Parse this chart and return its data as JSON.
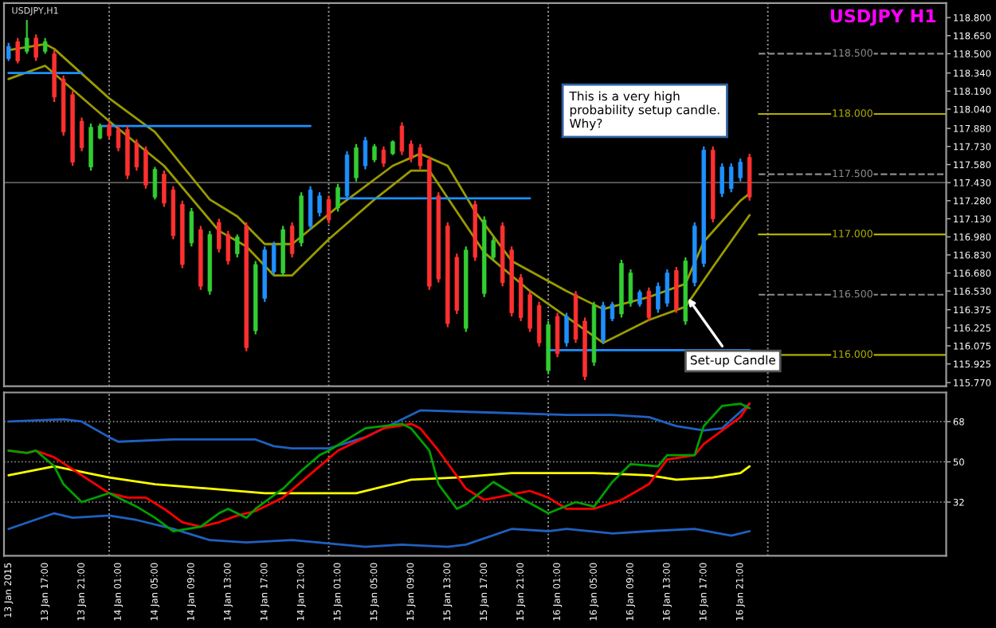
{
  "chart_data": [
    {
      "type": "candlestick",
      "title": "USDJPY H1",
      "annotations": [
        "USDJPY,H1",
        "This is a very high\nprobability setup candle.\nWhy?",
        {
          "text": "Set-up Candle",
          "x": "2015-01-16T15:00",
          "y": 116.5
        }
      ],
      "x": [
        "2015-01-13T13:00",
        "2015-01-13T14:00",
        "2015-01-13T15:00",
        "2015-01-13T16:00",
        "2015-01-13T17:00",
        "2015-01-13T18:00",
        "2015-01-13T19:00",
        "2015-01-13T20:00",
        "2015-01-13T21:00",
        "2015-01-13T22:00",
        "2015-01-13T23:00",
        "2015-01-14T00:00",
        "2015-01-14T01:00",
        "2015-01-14T02:00",
        "2015-01-14T03:00",
        "2015-01-14T04:00",
        "2015-01-14T05:00",
        "2015-01-14T06:00",
        "2015-01-14T07:00",
        "2015-01-14T08:00",
        "2015-01-14T09:00",
        "2015-01-14T10:00",
        "2015-01-14T11:00",
        "2015-01-14T12:00",
        "2015-01-14T13:00",
        "2015-01-14T14:00",
        "2015-01-14T15:00",
        "2015-01-14T16:00",
        "2015-01-14T17:00",
        "2015-01-14T18:00",
        "2015-01-14T19:00",
        "2015-01-14T20:00",
        "2015-01-14T21:00",
        "2015-01-14T22:00",
        "2015-01-14T23:00",
        "2015-01-15T00:00",
        "2015-01-15T01:00",
        "2015-01-15T02:00",
        "2015-01-15T03:00",
        "2015-01-15T04:00",
        "2015-01-15T05:00",
        "2015-01-15T06:00",
        "2015-01-15T07:00",
        "2015-01-15T08:00",
        "2015-01-15T09:00",
        "2015-01-15T10:00",
        "2015-01-15T11:00",
        "2015-01-15T12:00",
        "2015-01-15T13:00",
        "2015-01-15T14:00",
        "2015-01-15T15:00",
        "2015-01-15T16:00",
        "2015-01-15T17:00",
        "2015-01-15T18:00",
        "2015-01-15T19:00",
        "2015-01-15T20:00",
        "2015-01-15T21:00",
        "2015-01-15T22:00",
        "2015-01-15T23:00",
        "2015-01-16T00:00",
        "2015-01-16T01:00",
        "2015-01-16T02:00",
        "2015-01-16T03:00",
        "2015-01-16T04:00",
        "2015-01-16T05:00",
        "2015-01-16T06:00",
        "2015-01-16T07:00",
        "2015-01-16T08:00",
        "2015-01-16T09:00",
        "2015-01-16T10:00",
        "2015-01-16T11:00",
        "2015-01-16T12:00",
        "2015-01-16T13:00",
        "2015-01-16T14:00",
        "2015-01-16T15:00",
        "2015-01-16T16:00",
        "2015-01-16T17:00",
        "2015-01-16T18:00",
        "2015-01-16T19:00",
        "2015-01-16T20:00",
        "2015-01-16T21:00",
        "2015-01-16T22:00"
      ],
      "ohlc": [
        [
          118.46,
          118.59,
          118.44,
          118.56
        ],
        [
          118.6,
          118.63,
          118.42,
          118.44
        ],
        [
          118.52,
          118.78,
          118.5,
          118.63
        ],
        [
          118.63,
          118.66,
          118.44,
          118.47
        ],
        [
          118.52,
          118.63,
          118.5,
          118.6
        ],
        [
          118.5,
          118.53,
          118.1,
          118.14
        ],
        [
          118.29,
          118.32,
          117.82,
          117.85
        ],
        [
          118.16,
          118.19,
          117.57,
          117.6
        ],
        [
          117.94,
          117.97,
          117.69,
          117.72
        ],
        [
          117.56,
          117.92,
          117.53,
          117.89
        ],
        [
          117.8,
          117.92,
          117.79,
          117.9
        ],
        [
          117.91,
          117.94,
          117.79,
          117.82
        ],
        [
          117.87,
          117.9,
          117.69,
          117.72
        ],
        [
          117.87,
          117.9,
          117.46,
          117.49
        ],
        [
          117.76,
          117.79,
          117.53,
          117.56
        ],
        [
          117.7,
          117.73,
          117.38,
          117.41
        ],
        [
          117.31,
          117.56,
          117.29,
          117.54
        ],
        [
          117.5,
          117.53,
          117.23,
          117.26
        ],
        [
          117.37,
          117.4,
          116.96,
          116.99
        ],
        [
          117.25,
          117.28,
          116.72,
          116.75
        ],
        [
          116.93,
          117.22,
          116.9,
          117.19
        ],
        [
          117.04,
          117.07,
          116.54,
          116.57
        ],
        [
          116.53,
          117.03,
          116.5,
          117.0
        ],
        [
          117.1,
          117.13,
          116.85,
          116.88
        ],
        [
          117.0,
          117.03,
          116.75,
          116.78
        ],
        [
          116.84,
          117.0,
          116.81,
          116.98
        ],
        [
          117.07,
          117.1,
          116.03,
          116.06
        ],
        [
          116.2,
          116.78,
          116.17,
          116.75
        ],
        [
          116.47,
          116.9,
          116.44,
          116.87
        ],
        [
          116.69,
          116.94,
          116.66,
          116.91
        ],
        [
          116.68,
          117.07,
          116.65,
          117.04
        ],
        [
          117.07,
          117.1,
          116.81,
          116.84
        ],
        [
          116.93,
          117.35,
          116.9,
          117.32
        ],
        [
          117.07,
          117.4,
          117.04,
          117.37
        ],
        [
          117.18,
          117.35,
          117.15,
          117.32
        ],
        [
          117.29,
          117.32,
          117.09,
          117.12
        ],
        [
          117.22,
          117.42,
          117.19,
          117.39
        ],
        [
          117.32,
          117.69,
          117.29,
          117.66
        ],
        [
          117.47,
          117.75,
          117.44,
          117.72
        ],
        [
          117.57,
          117.81,
          117.54,
          117.78
        ],
        [
          117.62,
          117.75,
          117.6,
          117.73
        ],
        [
          117.7,
          117.73,
          117.56,
          117.59
        ],
        [
          117.67,
          117.78,
          117.66,
          117.77
        ],
        [
          117.9,
          117.93,
          117.66,
          117.69
        ],
        [
          117.75,
          117.78,
          117.6,
          117.63
        ],
        [
          117.72,
          117.75,
          117.54,
          117.57
        ],
        [
          117.62,
          117.65,
          116.54,
          116.57
        ],
        [
          117.32,
          117.35,
          116.6,
          116.63
        ],
        [
          117.07,
          117.1,
          116.23,
          116.26
        ],
        [
          116.81,
          116.84,
          116.34,
          116.37
        ],
        [
          116.22,
          116.9,
          116.19,
          116.87
        ],
        [
          117.25,
          117.28,
          116.78,
          116.81
        ],
        [
          116.51,
          117.15,
          116.48,
          117.12
        ],
        [
          116.81,
          116.98,
          116.78,
          116.95
        ],
        [
          117.07,
          117.1,
          116.57,
          116.6
        ],
        [
          116.87,
          116.9,
          116.32,
          116.35
        ],
        [
          116.64,
          116.67,
          116.28,
          116.31
        ],
        [
          116.5,
          116.53,
          116.19,
          116.22
        ],
        [
          116.41,
          116.44,
          116.07,
          116.1
        ],
        [
          115.87,
          116.28,
          115.84,
          116.25
        ],
        [
          116.32,
          116.35,
          115.98,
          116.01
        ],
        [
          116.1,
          116.35,
          116.07,
          116.32
        ],
        [
          116.5,
          116.53,
          116.1,
          116.13
        ],
        [
          116.28,
          116.31,
          115.79,
          115.82
        ],
        [
          115.94,
          116.44,
          115.91,
          116.41
        ],
        [
          116.12,
          116.44,
          116.09,
          116.41
        ],
        [
          116.3,
          116.44,
          116.28,
          116.42
        ],
        [
          116.34,
          116.79,
          116.31,
          116.76
        ],
        [
          116.43,
          116.71,
          116.4,
          116.68
        ],
        [
          116.42,
          116.54,
          116.4,
          116.52
        ],
        [
          116.53,
          116.56,
          116.28,
          116.31
        ],
        [
          116.38,
          116.6,
          116.35,
          116.57
        ],
        [
          116.43,
          116.71,
          116.4,
          116.68
        ],
        [
          116.7,
          116.73,
          116.35,
          116.38
        ],
        [
          116.28,
          116.81,
          116.25,
          116.78
        ],
        [
          116.6,
          117.1,
          116.57,
          117.07
        ],
        [
          116.76,
          117.73,
          116.73,
          117.7
        ],
        [
          117.7,
          117.73,
          117.1,
          117.13
        ],
        [
          117.34,
          117.59,
          117.31,
          117.56
        ],
        [
          117.38,
          117.59,
          117.35,
          117.56
        ],
        [
          117.47,
          117.63,
          117.44,
          117.6
        ],
        [
          117.64,
          117.67,
          117.28,
          117.31
        ]
      ],
      "colors": [
        "#1e90ff",
        "#ff3030",
        "#32cd32",
        "#ff3030",
        "#32cd32",
        "#ff3030",
        "#ff3030",
        "#ff3030",
        "#ff3030",
        "#32cd32",
        "#32cd32",
        "#ff3030",
        "#ff3030",
        "#ff3030",
        "#ff3030",
        "#ff3030",
        "#32cd32",
        "#ff3030",
        "#ff3030",
        "#ff3030",
        "#32cd32",
        "#ff3030",
        "#32cd32",
        "#ff3030",
        "#ff3030",
        "#32cd32",
        "#ff3030",
        "#32cd32",
        "#1e90ff",
        "#1e90ff",
        "#32cd32",
        "#ff3030",
        "#32cd32",
        "#1e90ff",
        "#1e90ff",
        "#ff3030",
        "#32cd32",
        "#1e90ff",
        "#32cd32",
        "#1e90ff",
        "#32cd32",
        "#ff3030",
        "#32cd32",
        "#ff3030",
        "#ff3030",
        "#ff3030",
        "#ff3030",
        "#ff3030",
        "#ff3030",
        "#ff3030",
        "#32cd32",
        "#ff3030",
        "#32cd32",
        "#32cd32",
        "#ff3030",
        "#ff3030",
        "#ff3030",
        "#ff3030",
        "#ff3030",
        "#32cd32",
        "#ff3030",
        "#1e90ff",
        "#ff3030",
        "#ff3030",
        "#32cd32",
        "#1e90ff",
        "#1e90ff",
        "#32cd32",
        "#32cd32",
        "#1e90ff",
        "#ff3030",
        "#1e90ff",
        "#1e90ff",
        "#ff3030",
        "#32cd32",
        "#1e90ff",
        "#1e90ff",
        "#ff3030",
        "#1e90ff",
        "#1e90ff",
        "#1e90ff",
        "#ff3030"
      ],
      "series": [
        {
          "type": "line",
          "color": "#9a9a00",
          "x": [
            "2015-01-13T13:00",
            "2015-01-13T17:00",
            "2015-01-13T18:00",
            "2015-01-14T00:00",
            "2015-01-14T05:00",
            "2015-01-14T11:00",
            "2015-01-14T14:00",
            "2015-01-14T17:00",
            "2015-01-14T20:00",
            "2015-01-15T01:00",
            "2015-01-15T07:00",
            "2015-01-15T10:00",
            "2015-01-15T13:00",
            "2015-01-15T16:00",
            "2015-01-15T20:00",
            "2015-01-16T02:00",
            "2015-01-16T06:00",
            "2015-01-16T11:00",
            "2015-01-16T15:00",
            "2015-01-16T17:00",
            "2015-01-16T21:00",
            "2015-01-16T22:00"
          ],
          "values": [
            118.53,
            118.58,
            118.54,
            118.13,
            117.85,
            117.29,
            117.15,
            116.92,
            116.92,
            117.23,
            117.57,
            117.67,
            117.57,
            117.19,
            116.78,
            116.53,
            116.38,
            116.48,
            116.59,
            116.94,
            117.28,
            117.34
          ]
        },
        {
          "type": "line",
          "color": "#9a9a00",
          "x": [
            "2015-01-13T13:00",
            "2015-01-13T17:00",
            "2015-01-14T00:00",
            "2015-01-14T06:00",
            "2015-01-14T12:00",
            "2015-01-14T15:00",
            "2015-01-14T18:00",
            "2015-01-14T20:00",
            "2015-01-15T00:00",
            "2015-01-15T05:00",
            "2015-01-15T09:00",
            "2015-01-15T11:00",
            "2015-01-15T14:00",
            "2015-01-15T17:00",
            "2015-01-15T22:00",
            "2015-01-16T06:00",
            "2015-01-16T11:00",
            "2015-01-16T15:00",
            "2015-01-16T18:00",
            "2015-01-16T22:00"
          ],
          "values": [
            118.29,
            118.4,
            117.94,
            117.57,
            117.03,
            116.9,
            116.66,
            116.66,
            116.96,
            117.29,
            117.53,
            117.53,
            117.19,
            116.85,
            116.53,
            116.1,
            116.29,
            116.4,
            116.73,
            117.16
          ]
        },
        {
          "type": "line",
          "color": "#1e90ff",
          "x": [
            "2015-01-13T13:00",
            "2015-01-13T21:00"
          ],
          "values": [
            118.34,
            118.34
          ]
        },
        {
          "type": "line",
          "color": "#1e90ff",
          "x": [
            "2015-01-13T23:00",
            "2015-01-14T22:00"
          ],
          "values": [
            117.9,
            117.9
          ]
        },
        {
          "type": "line",
          "color": "#1e90ff",
          "x": [
            "2015-01-15T01:00",
            "2015-01-15T22:00"
          ],
          "values": [
            117.3,
            117.3
          ]
        },
        {
          "type": "line",
          "color": "#1e90ff",
          "x": [
            "2015-01-16T00:00",
            "2015-01-16T22:00"
          ],
          "values": [
            116.04,
            116.04
          ]
        }
      ],
      "xlim": [
        "2015-01-13T12:30",
        "2015-01-17T19:30"
      ],
      "ylim": [
        115.74,
        118.92
      ],
      "yticks": [
        {
          "value": 115.77,
          "label": "115.770"
        },
        {
          "value": 115.925,
          "label": "115.925"
        },
        {
          "value": 116.075,
          "label": "116.075"
        },
        {
          "value": 116.225,
          "label": "116.225"
        },
        {
          "value": 116.375,
          "label": "116.375"
        },
        {
          "value": 116.53,
          "label": "116.530"
        },
        {
          "value": 116.68,
          "label": "116.680"
        },
        {
          "value": 116.83,
          "label": "116.830"
        },
        {
          "value": 116.98,
          "label": "116.980"
        },
        {
          "value": 117.13,
          "label": "117.130"
        },
        {
          "value": 117.28,
          "label": "117.280"
        },
        {
          "value": 117.43,
          "label": "117.430"
        },
        {
          "value": 117.58,
          "label": "117.580"
        },
        {
          "value": 117.73,
          "label": "117.730"
        },
        {
          "value": 117.88,
          "label": "117.880"
        },
        {
          "value": 118.04,
          "label": "118.040"
        },
        {
          "value": 118.19,
          "label": "118.190"
        },
        {
          "value": 118.34,
          "label": "118.340"
        },
        {
          "value": 118.5,
          "label": "118.500"
        },
        {
          "value": 118.65,
          "label": "118.650"
        },
        {
          "value": 118.8,
          "label": "118.800"
        }
      ],
      "tick_labels": "y",
      "ref_lines": [
        {
          "axis": "y",
          "value": 118.5,
          "label": "118.500",
          "color": "#8c8c8c",
          "line_style": "dashed"
        },
        {
          "axis": "y",
          "value": 118.0,
          "label": "118.000",
          "color": "#b0b000",
          "line_style": "solid"
        },
        {
          "axis": "y",
          "value": 117.5,
          "label": "117.500",
          "color": "#8c8c8c",
          "line_style": "dashed"
        },
        {
          "axis": "y",
          "value": 117.0,
          "label": "117.000",
          "color": "#b0b000",
          "line_style": "solid"
        },
        {
          "axis": "y",
          "value": 116.5,
          "label": "116.500",
          "color": "#8c8c8c",
          "line_style": "dashed"
        },
        {
          "axis": "y",
          "value": 116.0,
          "label": "116.000",
          "color": "#b0b000",
          "line_style": "solid"
        },
        {
          "axis": "y",
          "value": 117.43,
          "color": "#606060",
          "line_style": "solid"
        },
        {
          "axis": "x",
          "value": "2015-01-14T00:00",
          "color": "#a0a0a0",
          "line_style": "dotted"
        },
        {
          "axis": "x",
          "value": "2015-01-15T00:00",
          "color": "#a0a0a0",
          "line_style": "dotted"
        },
        {
          "axis": "x",
          "value": "2015-01-16T00:00",
          "color": "#a0a0a0",
          "line_style": "dotted"
        },
        {
          "axis": "x",
          "value": "2015-01-17T00:00",
          "color": "#a0a0a0",
          "line_style": "dotted"
        }
      ]
    },
    {
      "type": "line",
      "series": [
        {
          "color": "#2060c0",
          "x": [
            "2015-01-13T13:00",
            "2015-01-13T19:00",
            "2015-01-13T21:00",
            "2015-01-14T00:00",
            "2015-01-14T01:00",
            "2015-01-14T07:00",
            "2015-01-14T16:00",
            "2015-01-14T18:00",
            "2015-01-14T20:00",
            "2015-01-15T00:00",
            "2015-01-15T04:00",
            "2015-01-15T08:00",
            "2015-01-15T10:00",
            "2015-01-15T18:00",
            "2015-01-16T02:00",
            "2015-01-16T07:00",
            "2015-01-16T11:00",
            "2015-01-16T14:00",
            "2015-01-16T17:00",
            "2015-01-16T19:00",
            "2015-01-16T22:00"
          ],
          "values": [
            68,
            69,
            68,
            61,
            59,
            60,
            60,
            57,
            56,
            56,
            61,
            69,
            73,
            72,
            71,
            71,
            70,
            66,
            64,
            65,
            76
          ]
        },
        {
          "color": "#2060c0",
          "x": [
            "2015-01-13T13:00",
            "2015-01-13T18:00",
            "2015-01-13T20:00",
            "2015-01-14T00:00",
            "2015-01-14T03:00",
            "2015-01-14T07:00",
            "2015-01-14T11:00",
            "2015-01-14T15:00",
            "2015-01-14T20:00",
            "2015-01-15T04:00",
            "2015-01-15T08:00",
            "2015-01-15T13:00",
            "2015-01-15T15:00",
            "2015-01-15T20:00",
            "2015-01-16T00:00",
            "2015-01-16T02:00",
            "2015-01-16T07:00",
            "2015-01-16T11:00",
            "2015-01-16T16:00",
            "2015-01-16T20:00",
            "2015-01-16T22:00"
          ],
          "values": [
            20,
            27,
            25,
            26,
            24,
            20,
            15,
            14,
            15,
            12,
            13,
            12,
            13,
            20,
            19,
            20,
            18,
            19,
            20,
            17,
            19
          ]
        },
        {
          "color": "#ffff00",
          "x": [
            "2015-01-13T13:00",
            "2015-01-13T18:00",
            "2015-01-14T00:00",
            "2015-01-14T05:00",
            "2015-01-14T11:00",
            "2015-01-14T17:00",
            "2015-01-14T20:00",
            "2015-01-15T03:00",
            "2015-01-15T09:00",
            "2015-01-15T14:00",
            "2015-01-15T20:00",
            "2015-01-16T05:00",
            "2015-01-16T11:00",
            "2015-01-16T14:00",
            "2015-01-16T18:00",
            "2015-01-16T21:00",
            "2015-01-16T22:00"
          ],
          "values": [
            44,
            48,
            43,
            40,
            38,
            36,
            36,
            36,
            42,
            43,
            45,
            45,
            44,
            42,
            43,
            45,
            48
          ]
        },
        {
          "color": "#ff0000",
          "x": [
            "2015-01-13T13:00",
            "2015-01-13T15:00",
            "2015-01-13T16:00",
            "2015-01-13T18:00",
            "2015-01-13T21:00",
            "2015-01-14T00:00",
            "2015-01-14T02:00",
            "2015-01-14T04:00",
            "2015-01-14T06:00",
            "2015-01-14T08:00",
            "2015-01-14T10:00",
            "2015-01-14T12:00",
            "2015-01-14T14:00",
            "2015-01-14T16:00",
            "2015-01-14T19:00",
            "2015-01-14T23:00",
            "2015-01-15T01:00",
            "2015-01-15T04:00",
            "2015-01-15T06:00",
            "2015-01-15T09:00",
            "2015-01-15T10:00",
            "2015-01-15T12:00",
            "2015-01-15T15:00",
            "2015-01-15T17:00",
            "2015-01-15T22:00",
            "2015-01-16T00:00",
            "2015-01-16T02:00",
            "2015-01-16T05:00",
            "2015-01-16T08:00",
            "2015-01-16T11:00",
            "2015-01-16T13:00",
            "2015-01-16T16:00",
            "2015-01-16T17:00",
            "2015-01-16T21:00",
            "2015-01-16T22:00"
          ],
          "values": [
            55,
            54,
            55,
            52,
            44,
            36,
            34,
            34,
            29,
            23,
            21,
            23,
            26,
            28,
            34,
            48,
            55,
            61,
            65,
            67,
            65,
            55,
            38,
            33,
            37,
            34,
            29,
            29,
            33,
            40,
            51,
            53,
            58,
            70,
            76
          ]
        },
        {
          "color": "#00a000",
          "x": [
            "2015-01-13T13:00",
            "2015-01-13T15:00",
            "2015-01-13T16:00",
            "2015-01-13T18:00",
            "2015-01-13T19:00",
            "2015-01-13T21:00",
            "2015-01-14T00:00",
            "2015-01-14T03:00",
            "2015-01-14T05:00",
            "2015-01-14T07:00",
            "2015-01-14T10:00",
            "2015-01-14T12:00",
            "2015-01-14T13:00",
            "2015-01-14T15:00",
            "2015-01-14T16:00",
            "2015-01-14T19:00",
            "2015-01-14T21:00",
            "2015-01-14T23:00",
            "2015-01-15T00:00",
            "2015-01-15T04:00",
            "2015-01-15T06:00",
            "2015-01-15T08:00",
            "2015-01-15T09:00",
            "2015-01-15T11:00",
            "2015-01-15T12:00",
            "2015-01-15T14:00",
            "2015-01-15T15:00",
            "2015-01-15T18:00",
            "2015-01-15T20:00",
            "2015-01-16T00:00",
            "2015-01-16T03:00",
            "2015-01-16T05:00",
            "2015-01-16T07:00",
            "2015-01-16T09:00",
            "2015-01-16T12:00",
            "2015-01-16T13:00",
            "2015-01-16T16:00",
            "2015-01-16T17:00",
            "2015-01-16T19:00",
            "2015-01-16T21:00",
            "2015-01-16T22:00"
          ],
          "values": [
            55,
            54,
            55,
            48,
            40,
            32,
            36,
            30,
            25,
            19,
            21,
            27,
            29,
            25,
            29,
            38,
            46,
            53,
            55,
            65,
            66,
            67,
            65,
            55,
            40,
            29,
            31,
            41,
            36,
            27,
            32,
            30,
            41,
            49,
            48,
            53,
            53,
            66,
            75,
            76,
            74
          ]
        }
      ],
      "xlim": [
        "2015-01-13T12:30",
        "2015-01-17T19:30"
      ],
      "xticks": [
        {
          "value": "2015-01-13T13:00",
          "label": "13 Jan 2015"
        },
        {
          "value": "2015-01-13T17:00",
          "label": "13 Jan 17:00"
        },
        {
          "value": "2015-01-13T21:00",
          "label": "13 Jan 21:00"
        },
        {
          "value": "2015-01-14T01:00",
          "label": "14 Jan 01:00"
        },
        {
          "value": "2015-01-14T05:00",
          "label": "14 Jan 05:00"
        },
        {
          "value": "2015-01-14T09:00",
          "label": "14 Jan 09:00"
        },
        {
          "value": "2015-01-14T13:00",
          "label": "14 Jan 13:00"
        },
        {
          "value": "2015-01-14T17:00",
          "label": "14 Jan 17:00"
        },
        {
          "value": "2015-01-14T21:00",
          "label": "14 Jan 21:00"
        },
        {
          "value": "2015-01-15T01:00",
          "label": "15 Jan 01:00"
        },
        {
          "value": "2015-01-15T05:00",
          "label": "15 Jan 05:00"
        },
        {
          "value": "2015-01-15T09:00",
          "label": "15 Jan 09:00"
        },
        {
          "value": "2015-01-15T13:00",
          "label": "15 Jan 13:00"
        },
        {
          "value": "2015-01-15T17:00",
          "label": "15 Jan 17:00"
        },
        {
          "value": "2015-01-15T21:00",
          "label": "15 Jan 21:00"
        },
        {
          "value": "2015-01-16T01:00",
          "label": "16 Jan 01:00"
        },
        {
          "value": "2015-01-16T05:00",
          "label": "16 Jan 05:00"
        },
        {
          "value": "2015-01-16T09:00",
          "label": "16 Jan 09:00"
        },
        {
          "value": "2015-01-16T13:00",
          "label": "16 Jan 13:00"
        },
        {
          "value": "2015-01-16T17:00",
          "label": "16 Jan 17:00"
        },
        {
          "value": "2015-01-16T21:00",
          "label": "16 Jan 21:00"
        }
      ],
      "ylim": [
        8,
        81
      ],
      "yticks": [
        32,
        50,
        68
      ],
      "grid": "y",
      "ref_lines": [
        {
          "axis": "x",
          "value": "2015-01-14T00:00",
          "color": "#a0a0a0",
          "line_style": "dotted"
        },
        {
          "axis": "x",
          "value": "2015-01-15T00:00",
          "color": "#a0a0a0",
          "line_style": "dotted"
        },
        {
          "axis": "x",
          "value": "2015-01-16T00:00",
          "color": "#a0a0a0",
          "line_style": "dotted"
        },
        {
          "axis": "x",
          "value": "2015-01-17T00:00",
          "color": "#a0a0a0",
          "line_style": "dotted"
        }
      ]
    }
  ]
}
